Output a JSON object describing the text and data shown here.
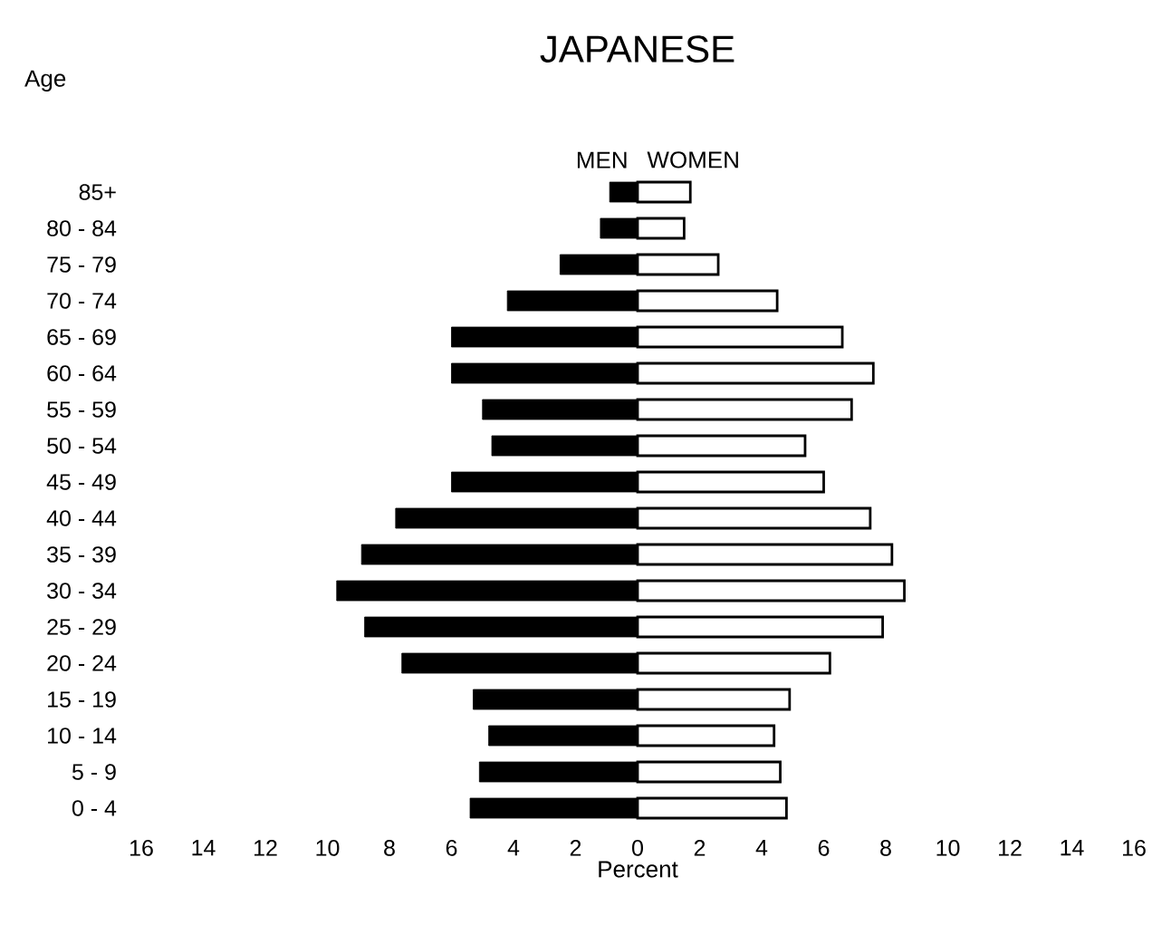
{
  "chart_data": {
    "type": "bar",
    "orientation": "horizontal",
    "stacked": true,
    "title": "JAPANESE",
    "xlabel": "Percent",
    "ylabel": "Age",
    "categories": [
      "85+",
      "80 - 84",
      "75 - 79",
      "70 - 74",
      "65 - 69",
      "60 - 64",
      "55 - 59",
      "50 - 54",
      "45 - 49",
      "40 - 44",
      "35 - 39",
      "30 - 34",
      "25 - 29",
      "20 - 24",
      "15 - 19",
      "10 - 14",
      "5 - 9",
      "0 - 4"
    ],
    "series": [
      {
        "name": "MEN",
        "color": "#000000",
        "values": [
          -0.9,
          -1.2,
          -2.5,
          -4.2,
          -6.0,
          -6.0,
          -5.0,
          -4.7,
          -6.0,
          -7.8,
          -8.9,
          -9.7,
          -8.8,
          -7.6,
          -5.3,
          -4.8,
          -5.1,
          -5.4
        ]
      },
      {
        "name": "WOMEN",
        "color": "#ffffff",
        "values": [
          1.7,
          1.5,
          2.6,
          4.5,
          6.6,
          7.6,
          6.9,
          5.4,
          6.0,
          7.5,
          8.2,
          8.6,
          7.9,
          6.2,
          4.9,
          4.4,
          4.6,
          4.8
        ]
      }
    ],
    "xlim": [
      -16,
      16
    ],
    "xticks": [
      {
        "value": -16,
        "label": "16"
      },
      {
        "value": -14,
        "label": "14"
      },
      {
        "value": -12,
        "label": "12"
      },
      {
        "value": -10,
        "label": "10"
      },
      {
        "value": -8,
        "label": "8"
      },
      {
        "value": -6,
        "label": "6"
      },
      {
        "value": -4,
        "label": "4"
      },
      {
        "value": -2,
        "label": "2"
      },
      0,
      2,
      4,
      6,
      8,
      10,
      12,
      14,
      16
    ]
  }
}
